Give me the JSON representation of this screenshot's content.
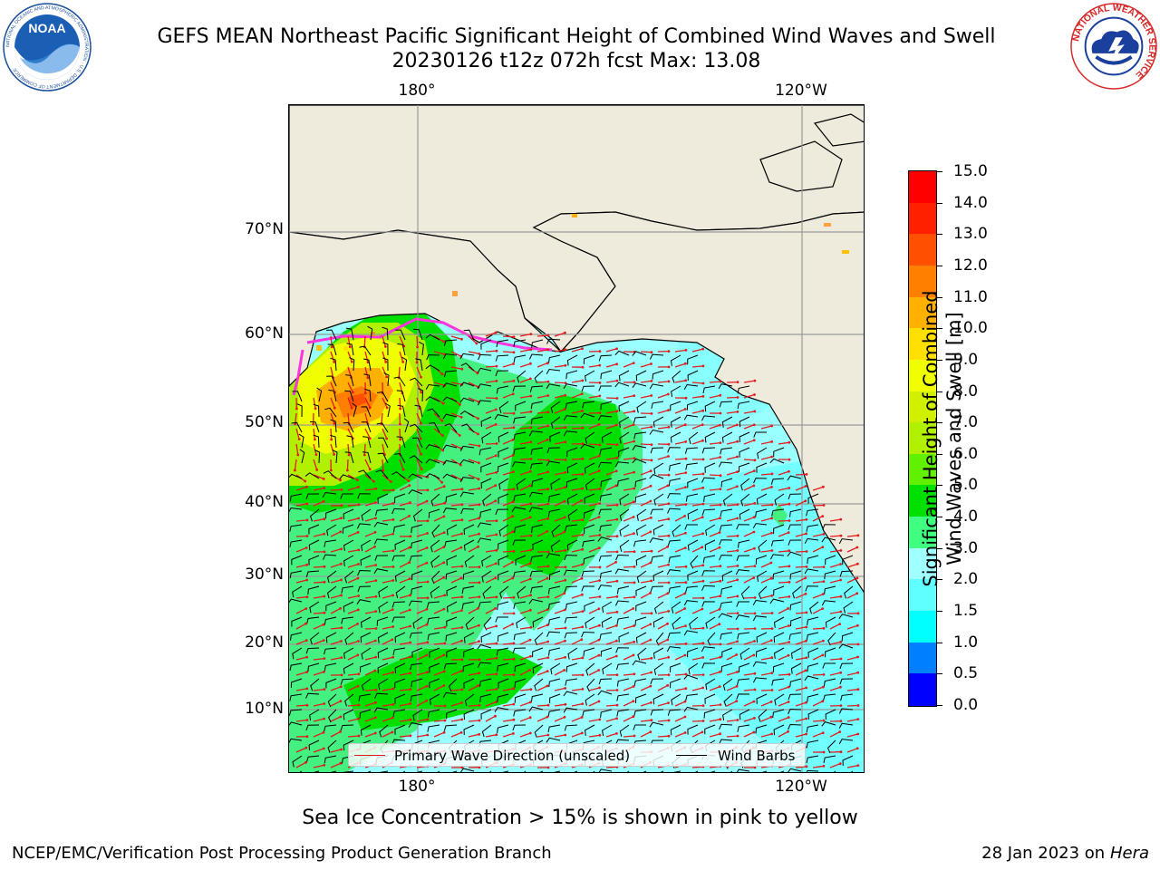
{
  "header": {
    "title_line1": "GEFS MEAN Northeast Pacific Significant Height of Combined Wind Waves and Swell",
    "title_line2": "20230126 t12z 072h fcst   Max: 13.08",
    "noaa_logo_text": "NOAA",
    "noaa_ring_text": "NATIONAL OCEANIC AND ATMOSPHERIC ADMINISTRATION · U.S. DEPARTMENT OF COMMERCE",
    "nws_ring_text": "NATIONAL WEATHER SERVICE"
  },
  "map": {
    "lat_labels": [
      "70°N",
      "60°N",
      "50°N",
      "40°N",
      "30°N",
      "20°N",
      "10°N"
    ],
    "lon_labels_top": [
      "180°",
      "120°W"
    ],
    "lon_labels_bottom": [
      "180°",
      "120°W"
    ],
    "legend": {
      "wave_label": "Primary Wave Direction (unscaled)",
      "barb_label": "Wind Barbs",
      "wave_color": "#e41a1c",
      "barb_color": "#000000"
    },
    "land_color": "#efebdc",
    "ocean_base_color": "#99ffff"
  },
  "colorbar": {
    "title": "Significant Height of Combined Wind Waves and Swell [m]",
    "title_line1": "Significant Height of Combined",
    "title_line2": "Wind Waves and Swell [m]",
    "tick_labels": [
      "15.0",
      "14.0",
      "13.0",
      "12.0",
      "11.0",
      "10.0",
      "9.0",
      "8.0",
      "7.0",
      "6.0",
      "5.0",
      "4.0",
      "3.0",
      "2.0",
      "1.5",
      "1.0",
      "0.5",
      "0.0"
    ],
    "colors": [
      "#ff0000",
      "#ff2000",
      "#ff5000",
      "#ff8000",
      "#ffb000",
      "#ffe000",
      "#f0ff00",
      "#d0f000",
      "#b0f000",
      "#60f000",
      "#00e000",
      "#40ff80",
      "#a0ffff",
      "#60ffff",
      "#00ffff",
      "#0080ff",
      "#0000ff"
    ]
  },
  "footer": {
    "sea_ice_note": "Sea Ice Concentration > 15% is shown in pink to yellow",
    "credit": "NCEP/EMC/Verification Post Processing Product Generation Branch",
    "date": "28 Jan 2023 on",
    "machine": "Hera"
  }
}
